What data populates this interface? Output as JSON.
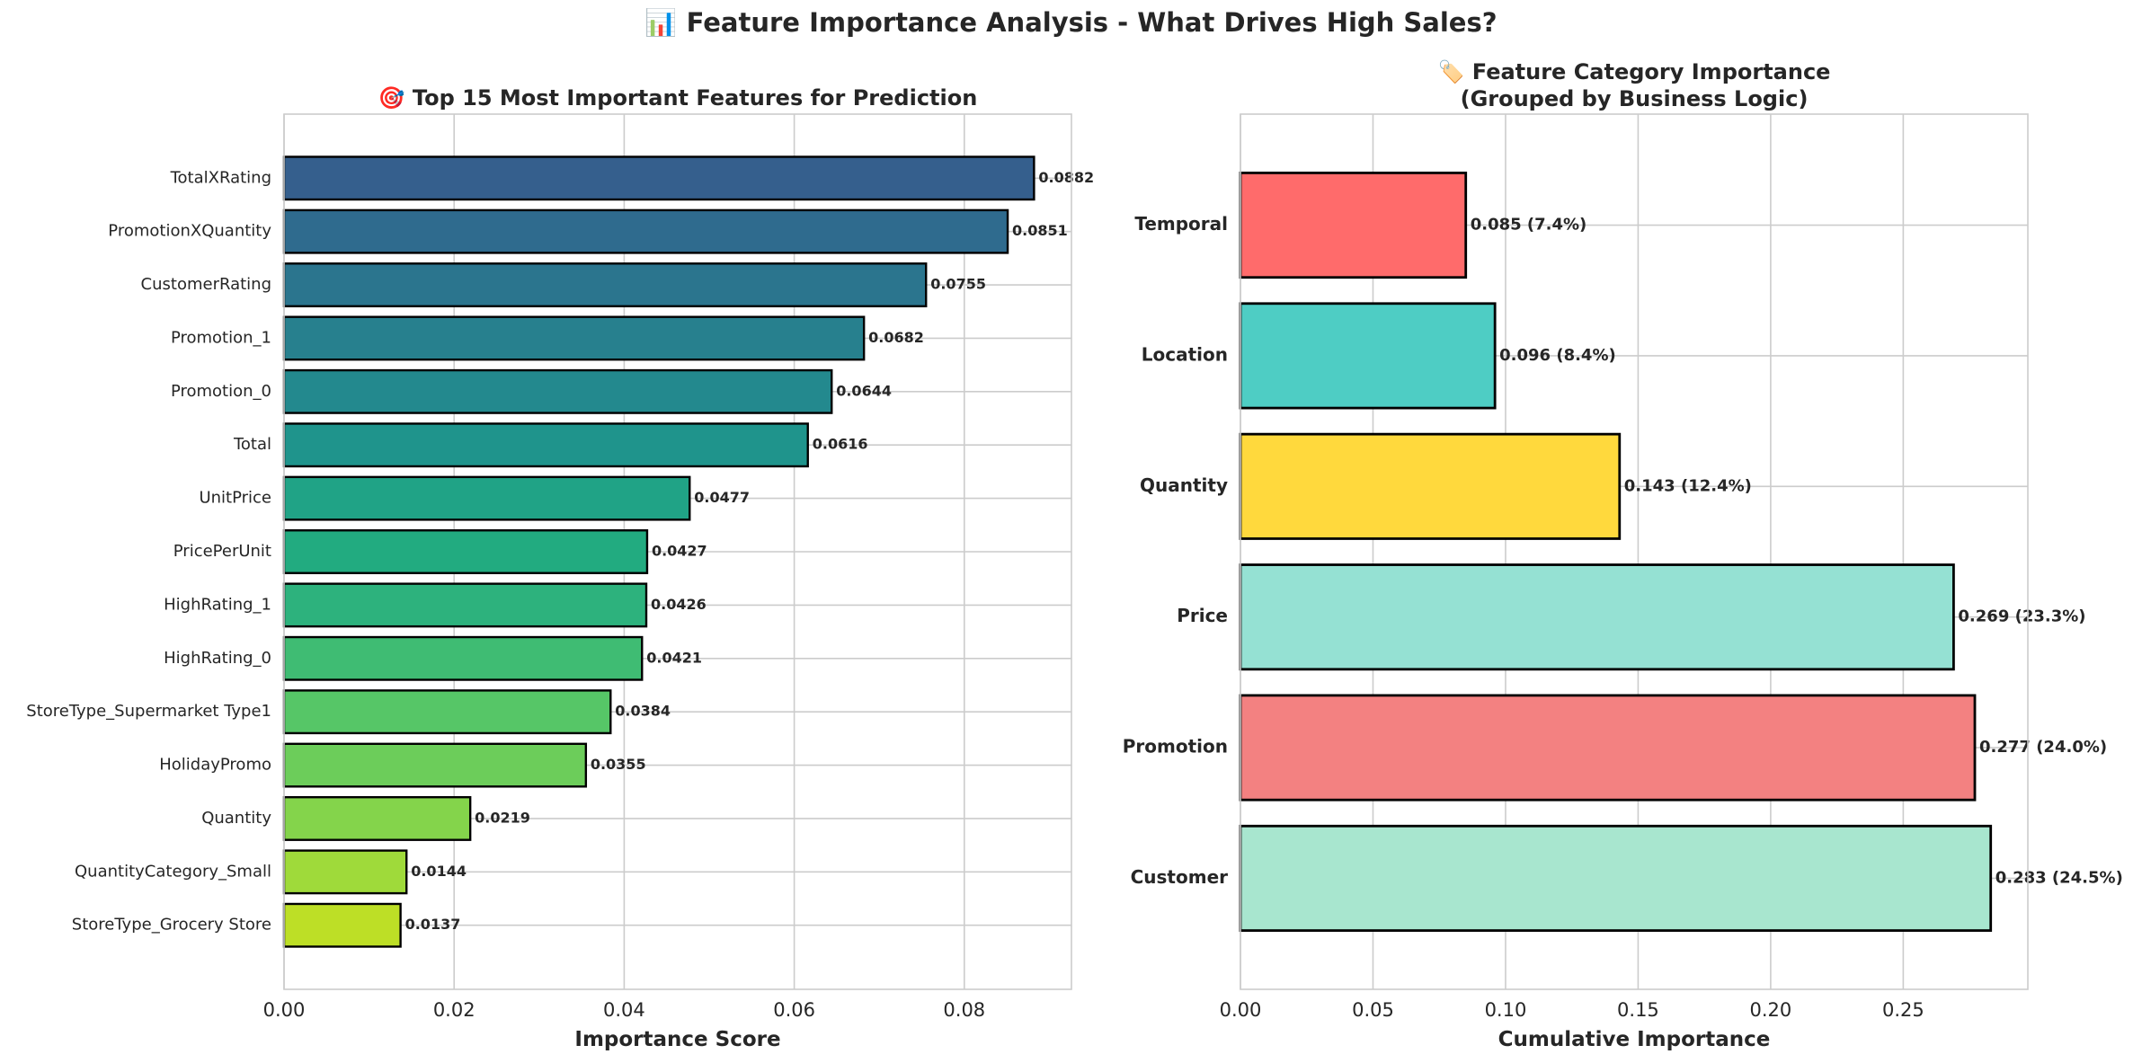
{
  "figure": {
    "suptitle": "📊 Feature Importance Analysis - What Drives High Sales?"
  },
  "chart_data": [
    {
      "type": "bar",
      "orientation": "horizontal",
      "title": "🎯 Top 15 Most Important Features for Prediction",
      "xlabel": "Importance Score",
      "ylabel": "",
      "xlim": [
        0,
        0.0926
      ],
      "xticks": [
        0.0,
        0.02,
        0.04,
        0.06,
        0.08
      ],
      "xtick_labels": [
        "0.00",
        "0.02",
        "0.04",
        "0.06",
        "0.08"
      ],
      "grid": true,
      "categories": [
        "TotalXRating",
        "PromotionXQuantity",
        "CustomerRating",
        "Promotion_1",
        "Promotion_0",
        "Total",
        "UnitPrice",
        "PricePerUnit",
        "HighRating_1",
        "HighRating_0",
        "StoreType_Supermarket Type1",
        "HolidayPromo",
        "Quantity",
        "QuantityCategory_Small",
        "StoreType_Grocery Store"
      ],
      "values": [
        0.0882,
        0.0851,
        0.0755,
        0.0682,
        0.0644,
        0.0616,
        0.0477,
        0.0427,
        0.0426,
        0.0421,
        0.0384,
        0.0355,
        0.0219,
        0.0144,
        0.0137
      ],
      "value_labels": [
        "0.0882",
        "0.0851",
        "0.0755",
        "0.0682",
        "0.0644",
        "0.0616",
        "0.0477",
        "0.0427",
        "0.0426",
        "0.0421",
        "0.0384",
        "0.0355",
        "0.0219",
        "0.0144",
        "0.0137"
      ],
      "colors": [
        "#355f8d",
        "#2f6b8e",
        "#2b758e",
        "#27808e",
        "#23898e",
        "#1f948c",
        "#20a386",
        "#22ab80",
        "#2db27d",
        "#3fbc73",
        "#56c667",
        "#6ccd5a",
        "#84d44b",
        "#9fda3a",
        "#bddf26"
      ]
    },
    {
      "type": "bar",
      "orientation": "horizontal",
      "title": "🏷️ Feature Category Importance\n(Grouped by Business Logic)",
      "title_lines": [
        "🏷️ Feature Category Importance",
        "(Grouped by Business Logic)"
      ],
      "xlabel": "Cumulative Importance",
      "ylabel": "",
      "xlim": [
        0,
        0.297
      ],
      "xticks": [
        0.0,
        0.05,
        0.1,
        0.15,
        0.2,
        0.25
      ],
      "xtick_labels": [
        "0.00",
        "0.05",
        "0.10",
        "0.15",
        "0.20",
        "0.25"
      ],
      "grid": true,
      "categories": [
        "Temporal",
        "Location",
        "Quantity",
        "Price",
        "Promotion",
        "Customer"
      ],
      "values": [
        0.085,
        0.096,
        0.143,
        0.269,
        0.277,
        0.283
      ],
      "percentages": [
        7.4,
        8.4,
        12.4,
        23.3,
        24.0,
        24.5
      ],
      "value_labels": [
        "0.085 (7.4%)",
        "0.096 (8.4%)",
        "0.143 (12.4%)",
        "0.269 (23.3%)",
        "0.277 (24.0%)",
        "0.283 (24.5%)"
      ],
      "colors": [
        "#ff6b6b",
        "#4ecdc4",
        "#ffd93d",
        "#95e1d3",
        "#f38181",
        "#a8e6cf"
      ]
    }
  ]
}
